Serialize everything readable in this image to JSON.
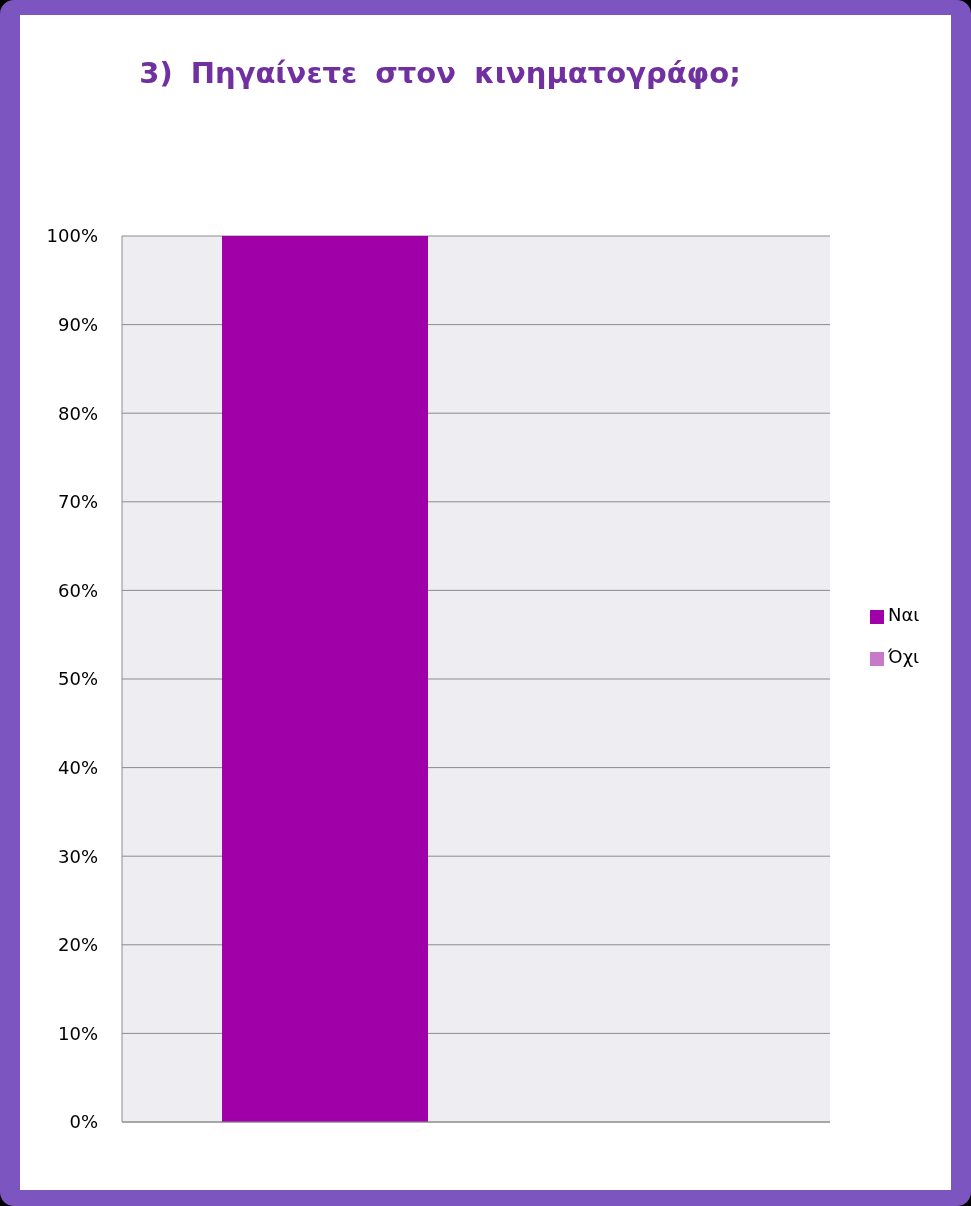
{
  "chart_data": {
    "type": "bar",
    "title": "3) Πηγαίνετε στον κινηματογράφο;",
    "categories": [
      null
    ],
    "series": [
      {
        "name": "Ναι",
        "color": "#a000a8",
        "values": [
          100
        ]
      },
      {
        "name": "Όχι",
        "color": "#c77ac7",
        "values": [
          0
        ]
      }
    ],
    "ylim": [
      0,
      100
    ],
    "yticks": [
      {
        "value": 0,
        "label": "0%"
      },
      {
        "value": 10,
        "label": "10%"
      },
      {
        "value": 20,
        "label": "20%"
      },
      {
        "value": 30,
        "label": "30%"
      },
      {
        "value": 40,
        "label": "40%"
      },
      {
        "value": 50,
        "label": "50%"
      },
      {
        "value": 60,
        "label": "60%"
      },
      {
        "value": 70,
        "label": "70%"
      },
      {
        "value": 80,
        "label": "80%"
      },
      {
        "value": 90,
        "label": "90%"
      },
      {
        "value": 100,
        "label": "100%"
      }
    ],
    "grid": "y",
    "legend": "right"
  }
}
